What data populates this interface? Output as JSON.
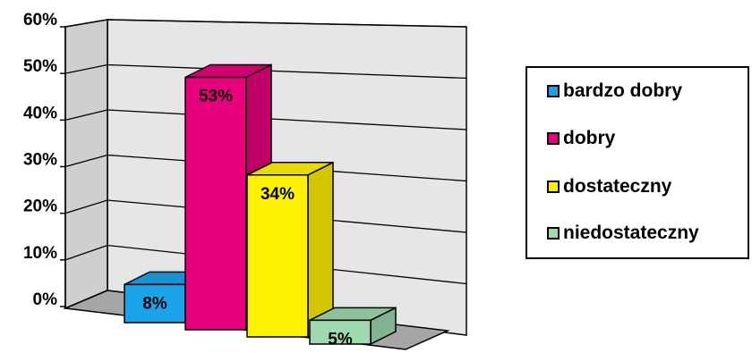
{
  "chart_data": {
    "type": "bar",
    "title": "",
    "xlabel": "",
    "ylabel": "",
    "ylim": [
      0,
      60
    ],
    "y_ticks": [
      "0%",
      "10%",
      "20%",
      "30%",
      "40%",
      "50%",
      "60%"
    ],
    "grid": true,
    "legend_position": "right",
    "style": "3d",
    "categories": [
      "bardzo dobry",
      "dobry",
      "dostateczny",
      "niedostateczny"
    ],
    "values": [
      8,
      53,
      34,
      5
    ],
    "data_labels": [
      "8%",
      "53%",
      "34%",
      "5%"
    ],
    "colors": [
      "#1aa3e8",
      "#e8007d",
      "#fff200",
      "#9fd9b0"
    ]
  },
  "legend": {
    "items": [
      {
        "label": "bardzo dobry",
        "color": "#1aa3e8"
      },
      {
        "label": "dobry",
        "color": "#e8007d"
      },
      {
        "label": "dostateczny",
        "color": "#fff200"
      },
      {
        "label": "niedostateczny",
        "color": "#9fd9b0"
      }
    ]
  }
}
